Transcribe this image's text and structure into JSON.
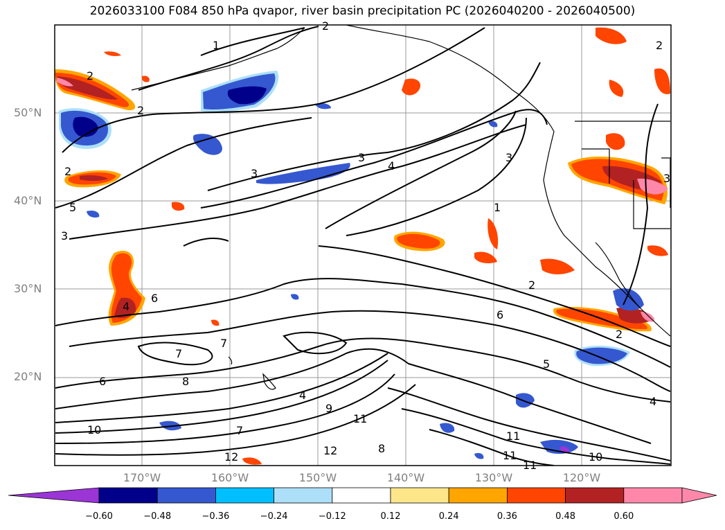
{
  "title": "2026033100 F084 850 hPa qvapor, river basin precipitation PC (2026040200 - 2026040500)",
  "map": {
    "region": "North Pacific",
    "lat_labels": [
      "50°N",
      "40°N",
      "30°N",
      "20°N"
    ],
    "lon_labels": [
      "170°W",
      "160°W",
      "150°W",
      "140°W",
      "130°W",
      "120°W"
    ],
    "contour_labels": [
      "1",
      "2",
      "2",
      "2",
      "2",
      "3",
      "3",
      "3",
      "4",
      "1",
      "3",
      "2",
      "2",
      "6",
      "5",
      "4",
      "4",
      "10",
      "11",
      "12",
      "7",
      "7",
      "6",
      "8",
      "9",
      "11",
      "11",
      "11",
      "10",
      "12",
      "2",
      "5",
      "3",
      "7",
      "4",
      "8",
      "6"
    ]
  },
  "colorbar": {
    "ticks": [
      "−0.60",
      "−0.48",
      "−0.36",
      "−0.24",
      "−0.12",
      "0.12",
      "0.24",
      "0.36",
      "0.48",
      "0.60"
    ],
    "colors": [
      "#9b35d6",
      "#00008b",
      "#3558d0",
      "#00bfff",
      "#ade0f8",
      "#ffffff",
      "#fde68a",
      "#ffa500",
      "#ff4500",
      "#b22222",
      "#ff88aa",
      "#ff88aa"
    ]
  }
}
